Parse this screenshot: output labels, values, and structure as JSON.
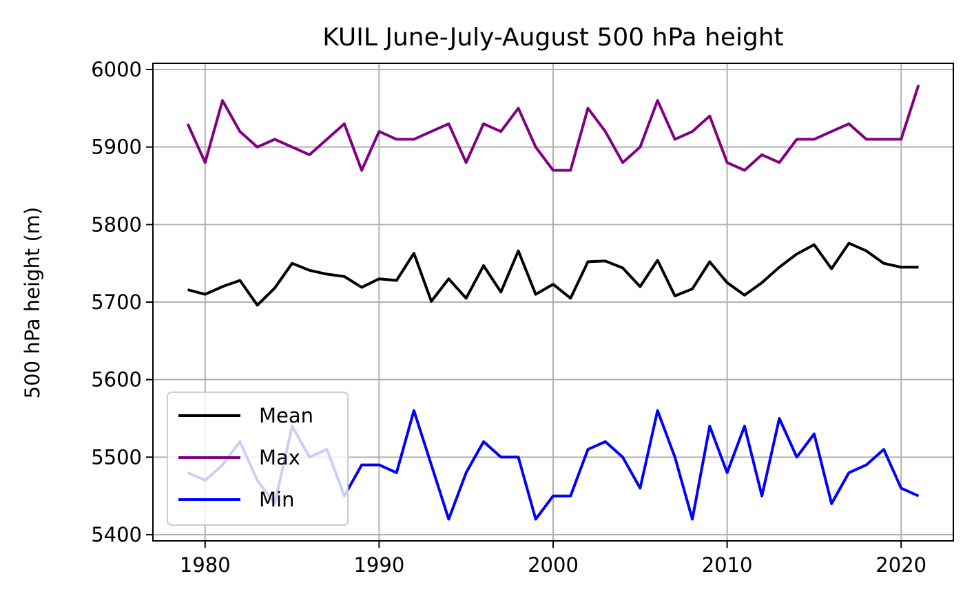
{
  "chart_data": {
    "type": "line",
    "title": "KUIL June-July-August 500 hPa height",
    "xlabel": "",
    "ylabel": "500 hPa height (m)",
    "xlim": [
      1977,
      2023
    ],
    "ylim": [
      5392,
      6008
    ],
    "xticks": [
      1980,
      1990,
      2000,
      2010,
      2020
    ],
    "yticks": [
      5400,
      5500,
      5600,
      5700,
      5800,
      5900,
      6000
    ],
    "grid": true,
    "legend_position": "lower-left",
    "x": [
      1979,
      1980,
      1981,
      1982,
      1983,
      1984,
      1985,
      1986,
      1987,
      1988,
      1989,
      1990,
      1991,
      1992,
      1993,
      1994,
      1995,
      1996,
      1997,
      1998,
      1999,
      2000,
      2001,
      2002,
      2003,
      2004,
      2005,
      2006,
      2007,
      2008,
      2009,
      2010,
      2011,
      2012,
      2013,
      2014,
      2015,
      2016,
      2017,
      2018,
      2019,
      2020,
      2021
    ],
    "series": [
      {
        "name": "Mean",
        "color": "#000000",
        "values": [
          5716,
          5710,
          5720,
          5728,
          5696,
          5718,
          5750,
          5741,
          5736,
          5733,
          5719,
          5730,
          5728,
          5763,
          5701,
          5730,
          5705,
          5747,
          5713,
          5766,
          5710,
          5723,
          5705,
          5752,
          5753,
          5744,
          5720,
          5754,
          5708,
          5717,
          5752,
          5725,
          5709,
          5725,
          5745,
          5762,
          5774,
          5743,
          5776,
          5766,
          5750,
          5745,
          5745
        ]
      },
      {
        "name": "Max",
        "color": "#800080",
        "values": [
          5930,
          5880,
          5960,
          5920,
          5900,
          5910,
          5900,
          5890,
          5910,
          5930,
          5870,
          5920,
          5910,
          5910,
          5920,
          5930,
          5880,
          5930,
          5920,
          5950,
          5900,
          5870,
          5870,
          5950,
          5920,
          5880,
          5900,
          5960,
          5910,
          5920,
          5940,
          5880,
          5870,
          5890,
          5880,
          5910,
          5910,
          5920,
          5930,
          5910,
          5910,
          5910,
          5980
        ]
      },
      {
        "name": "Min",
        "color": "#0000ff",
        "values": [
          5480,
          5470,
          5490,
          5520,
          5470,
          5440,
          5540,
          5500,
          5510,
          5450,
          5490,
          5490,
          5480,
          5560,
          5490,
          5420,
          5480,
          5520,
          5500,
          5500,
          5420,
          5450,
          5450,
          5510,
          5520,
          5500,
          5460,
          5560,
          5500,
          5420,
          5540,
          5480,
          5540,
          5450,
          5550,
          5500,
          5530,
          5440,
          5480,
          5490,
          5510,
          5460,
          5450
        ]
      }
    ]
  }
}
